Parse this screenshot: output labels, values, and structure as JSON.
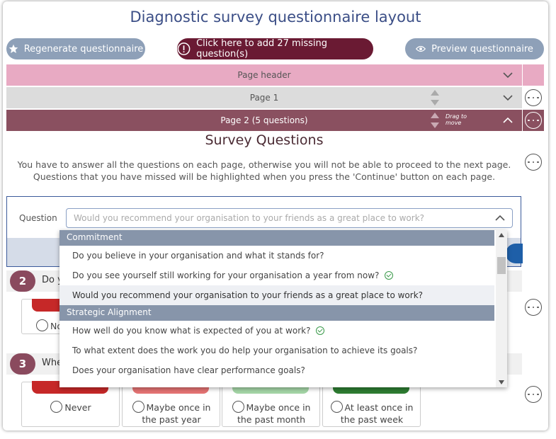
{
  "title": "Diagnostic survey questionnaire layout",
  "buttons": {
    "regenerate": "Regenerate questionnaire",
    "missing": "Click here to add 27 missing question(s)",
    "preview": "Preview questionnaire"
  },
  "bars": {
    "page_header": "Page header",
    "page1": "Page 1",
    "page2": "Page 2 (5 questions)",
    "drag_hint": "Drag to move"
  },
  "section": {
    "title": "Survey Questions",
    "intro": "You have to answer all the questions on each page, otherwise you will not be able to proceed to the next page. Questions that you have missed will be highlighted when you press the 'Continue' button on each page."
  },
  "question_editor": {
    "label": "Question",
    "placeholder": "Would you recommend your organisation to your friends as a great place to work?"
  },
  "dropdown": {
    "groups": [
      {
        "name": "Commitment",
        "items": [
          {
            "text": "Do you believe in your organisation and what it stands for?",
            "done": false,
            "selected": false
          },
          {
            "text": "Do you see yourself still working for your organisation a year from now?",
            "done": true,
            "selected": false
          },
          {
            "text": "Would you recommend your organisation to your friends as a great place to work?",
            "done": false,
            "selected": true
          }
        ]
      },
      {
        "name": "Strategic Alignment",
        "items": [
          {
            "text": "How well do you know what is expected of you at work?",
            "done": true,
            "selected": false
          },
          {
            "text": "To what extent does the work you do help your organisation to achieve its goals?",
            "done": false,
            "selected": false
          },
          {
            "text": "Does your organisation have clear performance goals?",
            "done": false,
            "selected": false
          }
        ]
      }
    ]
  },
  "questions": [
    {
      "number": "2",
      "text_visible": "Do y",
      "option_partial": "No"
    },
    {
      "number": "3",
      "text_visible": "Whe"
    }
  ],
  "options": [
    {
      "label": "Never",
      "color": "#c62828"
    },
    {
      "label": "Maybe once in the past year",
      "color": "#e57373"
    },
    {
      "label": "Maybe once in the past month",
      "color": "#a5d6a7"
    },
    {
      "label": "At least once in the past week",
      "color": "#2e7d32"
    }
  ],
  "colors": {
    "title": "#3b4e86",
    "page_header_bar": "#e8aac3",
    "page1_bar": "#dcdcdc",
    "page2_bar": "#8a5060",
    "missing_button": "#6a1a33",
    "grey_button": "#8ea0b8"
  }
}
